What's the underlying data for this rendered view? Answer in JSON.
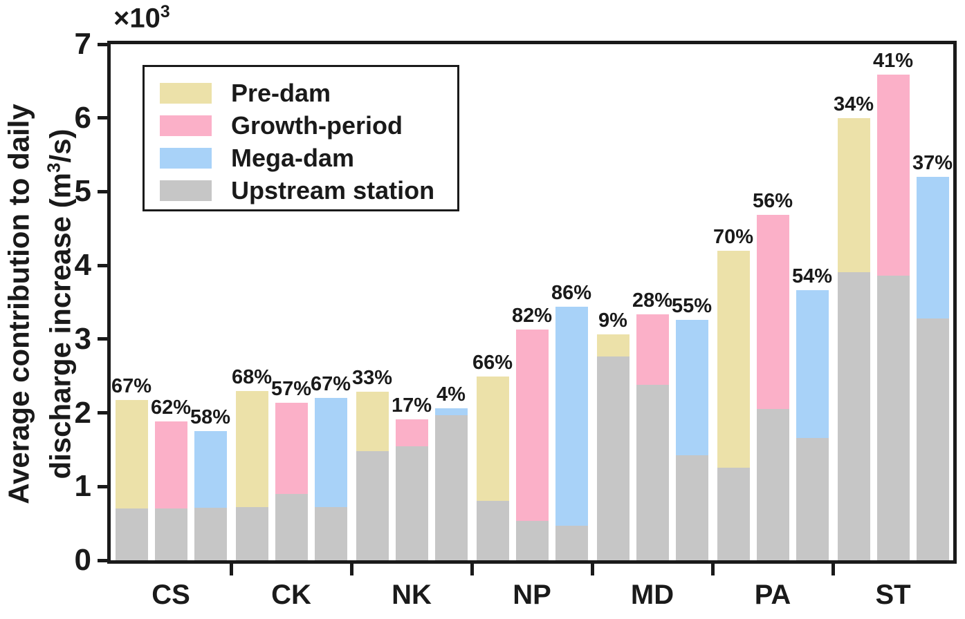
{
  "chart_data": {
    "type": "bar",
    "title": "",
    "y_axis": {
      "label_line1": "Average contribution to daily",
      "label_line2_pre": "discharge increase (m",
      "label_line2_sup": "3",
      "label_line2_post": "/s)",
      "multiplier_base": "×10",
      "multiplier_exp": "3",
      "ticks": [
        0,
        1,
        2,
        3,
        4,
        5,
        6,
        7
      ],
      "ylim": [
        0,
        7
      ],
      "grid": false
    },
    "x_axis": {
      "categories": [
        "CS",
        "CK",
        "NK",
        "NP",
        "MD",
        "PA",
        "ST"
      ]
    },
    "series_names": [
      "Pre-dam",
      "Growth-period",
      "Mega-dam"
    ],
    "base_series_name": "Upstream station",
    "groups": [
      {
        "station": "CS",
        "bars": [
          {
            "series": "Pre-dam",
            "total": 2.17,
            "upstream": 0.7,
            "label": "67%"
          },
          {
            "series": "Growth-period",
            "total": 1.88,
            "upstream": 0.7,
            "label": "62%"
          },
          {
            "series": "Mega-dam",
            "total": 1.75,
            "upstream": 0.71,
            "label": "58%"
          }
        ]
      },
      {
        "station": "CK",
        "bars": [
          {
            "series": "Pre-dam",
            "total": 2.3,
            "upstream": 0.72,
            "label": "68%"
          },
          {
            "series": "Growth-period",
            "total": 2.14,
            "upstream": 0.9,
            "label": "57%"
          },
          {
            "series": "Mega-dam",
            "total": 2.2,
            "upstream": 0.72,
            "label": "67%"
          }
        ]
      },
      {
        "station": "NK",
        "bars": [
          {
            "series": "Pre-dam",
            "total": 2.29,
            "upstream": 1.48,
            "label": "33%"
          },
          {
            "series": "Growth-period",
            "total": 1.91,
            "upstream": 1.55,
            "label": "17%"
          },
          {
            "series": "Mega-dam",
            "total": 2.06,
            "upstream": 1.97,
            "label": "4%"
          }
        ]
      },
      {
        "station": "NP",
        "bars": [
          {
            "series": "Pre-dam",
            "total": 2.49,
            "upstream": 0.81,
            "label": "66%"
          },
          {
            "series": "Growth-period",
            "total": 3.13,
            "upstream": 0.53,
            "label": "82%"
          },
          {
            "series": "Mega-dam",
            "total": 3.44,
            "upstream": 0.47,
            "label": "86%"
          }
        ]
      },
      {
        "station": "MD",
        "bars": [
          {
            "series": "Pre-dam",
            "total": 3.06,
            "upstream": 2.76,
            "label": "9%"
          },
          {
            "series": "Growth-period",
            "total": 3.34,
            "upstream": 2.38,
            "label": "28%"
          },
          {
            "series": "Mega-dam",
            "total": 3.26,
            "upstream": 1.42,
            "label": "55%"
          }
        ]
      },
      {
        "station": "PA",
        "bars": [
          {
            "series": "Pre-dam",
            "total": 4.2,
            "upstream": 1.26,
            "label": "70%"
          },
          {
            "series": "Growth-period",
            "total": 4.69,
            "upstream": 2.05,
            "label": "56%"
          },
          {
            "series": "Mega-dam",
            "total": 3.66,
            "upstream": 1.66,
            "label": "54%"
          }
        ]
      },
      {
        "station": "ST",
        "bars": [
          {
            "series": "Pre-dam",
            "total": 6.0,
            "upstream": 3.91,
            "label": "34%"
          },
          {
            "series": "Growth-period",
            "total": 6.59,
            "upstream": 3.86,
            "label": "41%"
          },
          {
            "series": "Mega-dam",
            "total": 5.2,
            "upstream": 3.28,
            "label": "37%"
          }
        ]
      }
    ],
    "legend": {
      "position": "upper-left",
      "items": [
        {
          "label": "Pre-dam",
          "color": "#ece1a9"
        },
        {
          "label": "Growth-period",
          "color": "#fbb0c8"
        },
        {
          "label": "Mega-dam",
          "color": "#a8d2f8"
        },
        {
          "label": "Upstream station",
          "color": "#c6c6c6"
        }
      ]
    },
    "colors": {
      "axis": "#1a1a1a",
      "text": "#1a1a1a",
      "background": "#ffffff"
    }
  }
}
